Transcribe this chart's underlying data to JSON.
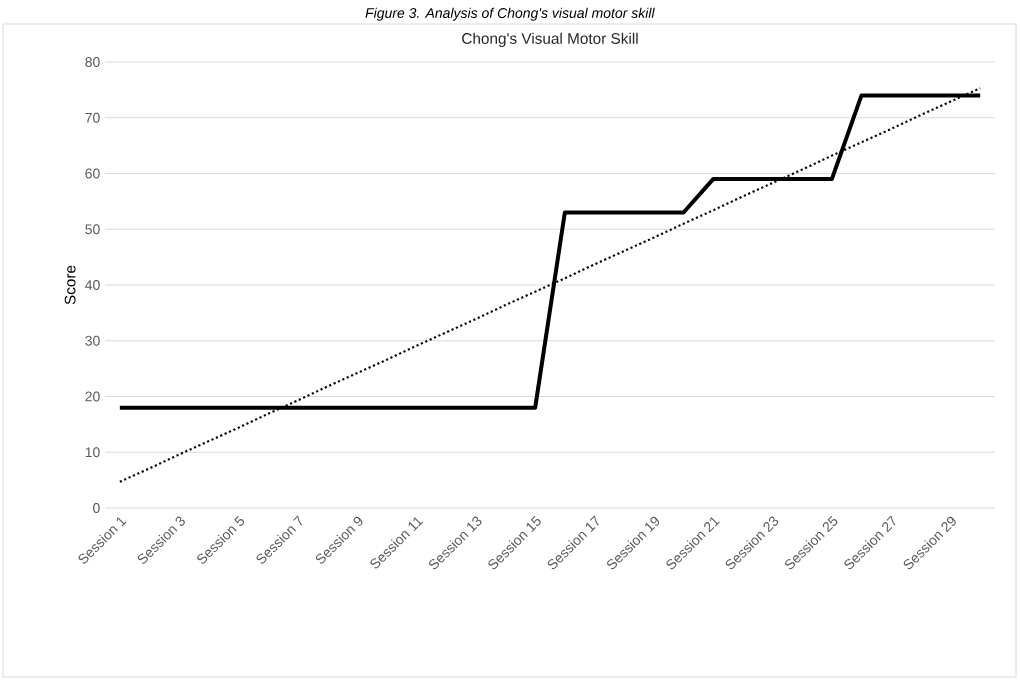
{
  "chart_data": {
    "type": "line",
    "title": "Chong's Visual Motor Skill",
    "ylabel": "Score",
    "annotations": [
      "*Figure 3. Analysis of Chong's visual motor skill*"
    ],
    "categories": [
      "Session 1",
      null,
      "Session 3",
      null,
      "Session 5",
      null,
      "Session 7",
      null,
      "Session 9",
      null,
      "Session 11",
      null,
      "Session 13",
      null,
      "Session 15",
      null,
      "Session 17",
      null,
      "Session 19",
      null,
      "Session 21",
      null,
      "Session 23",
      null,
      "Session 25",
      null,
      "Session 27",
      null,
      "Session 29",
      null
    ],
    "series": [
      {
        "color": "#000000",
        "values": [
          18,
          18,
          18,
          18,
          18,
          18,
          18,
          18,
          18,
          18,
          18,
          18,
          18,
          18,
          18,
          53,
          53,
          53,
          53,
          53,
          59,
          59,
          59,
          59,
          59,
          74,
          74,
          74,
          74,
          74
        ]
      },
      {
        "color": "#000000",
        "line_style": "dotted",
        "values": [
          4.7,
          7.1,
          9.6,
          12.0,
          14.4,
          16.9,
          19.3,
          21.8,
          24.2,
          26.6,
          29.1,
          31.5,
          33.9,
          36.4,
          38.8,
          41.2,
          43.7,
          46.1,
          48.5,
          51.0,
          53.4,
          55.9,
          58.3,
          60.7,
          63.2,
          65.6,
          68.0,
          70.5,
          72.9,
          75.3
        ]
      }
    ],
    "ylim": [
      0,
      80
    ],
    "yticks": [
      0,
      10,
      20,
      30,
      40,
      50,
      60,
      70,
      80
    ],
    "grid": "y"
  }
}
